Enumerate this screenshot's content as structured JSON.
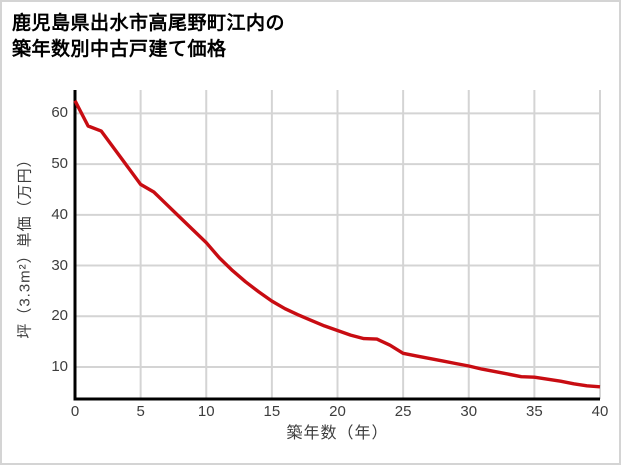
{
  "title": {
    "line1": "鹿児島県出水市高尾野町江内の",
    "line2": "築年数別中古戸建て価格"
  },
  "chart_data": {
    "type": "line",
    "title": "鹿児島県出水市高尾野町江内の築年数別中古戸建て価格",
    "xlabel": "築年数（年）",
    "ylabel": "坪（3.3m²）単価（万円）",
    "x": [
      0,
      1,
      2,
      3,
      4,
      5,
      6,
      7,
      8,
      9,
      10,
      11,
      12,
      13,
      14,
      15,
      16,
      17,
      18,
      19,
      20,
      21,
      22,
      23,
      24,
      25,
      26,
      27,
      28,
      29,
      30,
      31,
      32,
      33,
      34,
      35,
      36,
      37,
      38,
      39,
      40
    ],
    "values": [
      62.5,
      57.5,
      56.5,
      53,
      49.5,
      46,
      44.5,
      42,
      39.5,
      37,
      34.5,
      31.5,
      29,
      26.8,
      24.8,
      23,
      21.5,
      20.3,
      19.2,
      18.1,
      17.2,
      16.3,
      15.6,
      15.5,
      14.3,
      12.7,
      12.2,
      11.7,
      11.2,
      10.7,
      10.2,
      9.6,
      9.1,
      8.6,
      8.1,
      8.0,
      7.6,
      7.2,
      6.7,
      6.3,
      6.1
    ],
    "xlim": [
      0,
      40
    ],
    "ylim": [
      3.7,
      64.6
    ],
    "xticks": [
      0,
      5,
      10,
      15,
      20,
      25,
      30,
      35,
      40
    ],
    "yticks": [
      10,
      20,
      30,
      40,
      50,
      60
    ],
    "grid": true,
    "legend_position": "none",
    "line_color": "#c80c12",
    "grid_color": "#d4d4d4",
    "axis_color": "#000000",
    "tick_label_color": "#3d3d3d"
  }
}
